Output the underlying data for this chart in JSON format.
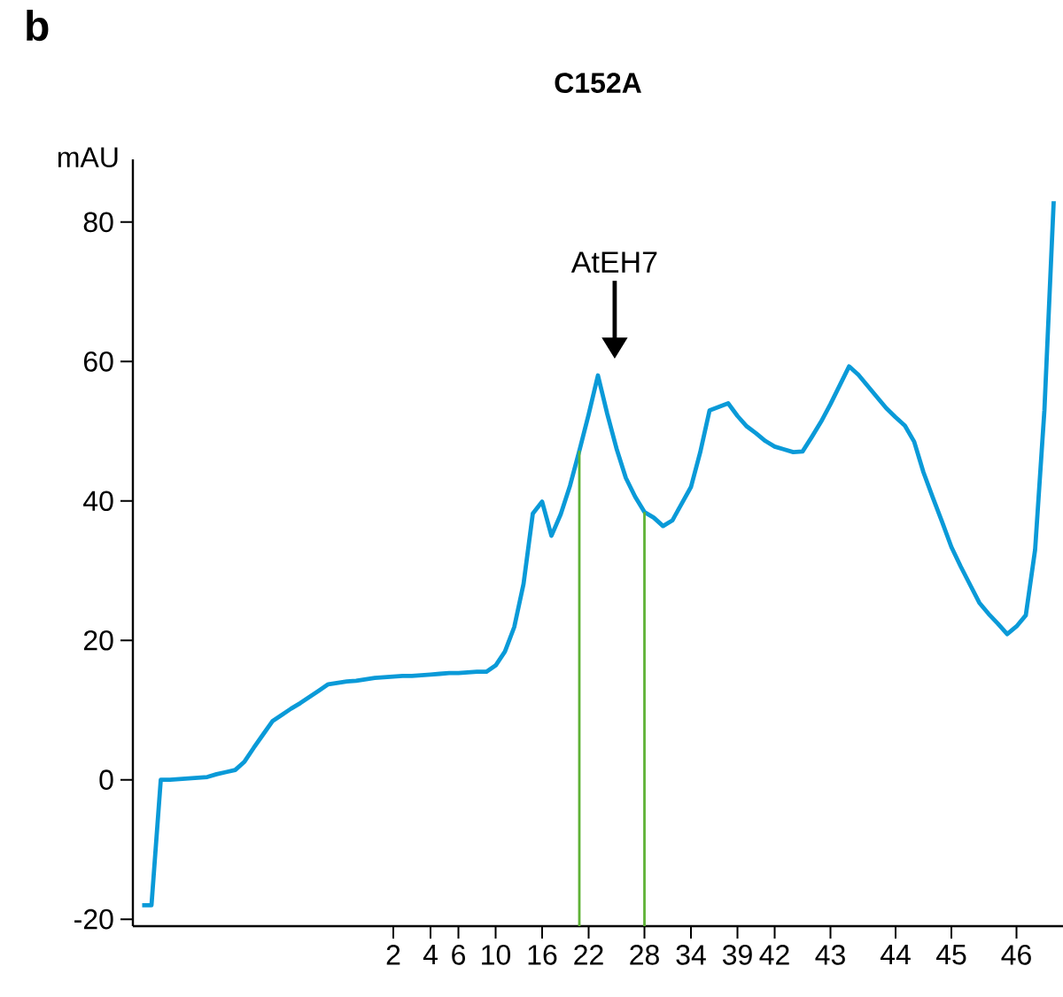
{
  "chart_data": {
    "type": "line",
    "title": "C152A",
    "ylabel": "mAU",
    "annotations": [
      "b",
      "AtEH7"
    ],
    "categories": [
      null,
      null,
      null,
      null,
      null,
      null,
      null,
      null,
      null,
      null,
      null,
      null,
      null,
      null,
      null,
      null,
      null,
      null,
      null,
      null,
      null,
      null,
      null,
      null,
      null,
      null,
      null,
      null,
      "2",
      null,
      null,
      null,
      "4",
      null,
      null,
      "6",
      null,
      null,
      null,
      "10",
      null,
      null,
      null,
      null,
      "16",
      null,
      null,
      null,
      null,
      "22",
      null,
      null,
      null,
      null,
      null,
      "28",
      null,
      null,
      null,
      null,
      "34",
      null,
      null,
      null,
      null,
      "39",
      null,
      null,
      null,
      "42",
      null,
      null,
      null,
      null,
      null,
      "43",
      null,
      null,
      null,
      null,
      null,
      null,
      "44",
      null,
      null,
      null,
      null,
      null,
      "45",
      null,
      null,
      null,
      null,
      null,
      null,
      "46",
      null,
      null,
      null,
      null,
      null
    ],
    "series": [
      {
        "color": "#0a9ad8",
        "values": [
          null,
          -18,
          -18,
          0,
          0,
          0.1,
          0.2,
          0.3,
          0.4,
          0.8,
          1.1,
          1.4,
          2.6,
          4.6,
          6.5,
          8.4,
          9.3,
          10.2,
          11.0,
          11.9,
          12.8,
          13.7,
          13.9,
          14.1,
          14.2,
          14.4,
          14.6,
          14.7,
          14.8,
          14.9,
          14.9,
          15.0,
          15.1,
          15.2,
          15.3,
          15.3,
          15.4,
          15.5,
          15.5,
          16.4,
          18.4,
          21.9,
          28.1,
          38.2,
          39.9,
          35,
          38.1,
          42.2,
          47.2,
          52.4,
          58,
          52.5,
          47.5,
          43.3,
          40.6,
          38.4,
          37.6,
          36.4,
          37.2,
          39.6,
          42,
          47,
          53,
          53.5,
          54,
          52.2,
          50.7,
          49.7,
          48.6,
          47.8,
          47.4,
          47,
          47.1,
          49.2,
          51.4,
          53.9,
          56.6,
          59.3,
          58.1,
          56.5,
          54.9,
          53.3,
          52,
          50.8,
          48.5,
          44.1,
          40.5,
          37,
          33.4,
          30.6,
          28,
          25.4,
          23.8,
          22.4,
          20.9,
          22,
          23.6,
          33,
          53,
          83,
          null
        ]
      }
    ],
    "ylim": [
      -21,
      89
    ],
    "yticks": [
      -20,
      0,
      20,
      40,
      60,
      80
    ],
    "grid": false,
    "marker": "none",
    "line_style": "solid"
  }
}
